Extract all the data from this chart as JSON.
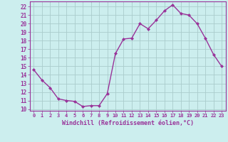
{
  "x": [
    0,
    1,
    2,
    3,
    4,
    5,
    6,
    7,
    8,
    9,
    10,
    11,
    12,
    13,
    14,
    15,
    16,
    17,
    18,
    19,
    20,
    21,
    22,
    23
  ],
  "y": [
    14.6,
    13.4,
    12.5,
    11.2,
    11.0,
    10.9,
    10.3,
    10.4,
    10.4,
    11.8,
    16.5,
    18.2,
    18.3,
    20.0,
    19.4,
    20.4,
    21.5,
    22.2,
    21.2,
    21.0,
    20.0,
    18.3,
    16.4,
    15.0
  ],
  "xlabel": "Windchill (Refroidissement éolien,°C)",
  "xlim": [
    -0.5,
    23.5
  ],
  "ylim": [
    9.8,
    22.6
  ],
  "yticks": [
    10,
    11,
    12,
    13,
    14,
    15,
    16,
    17,
    18,
    19,
    20,
    21,
    22
  ],
  "xticks": [
    0,
    1,
    2,
    3,
    4,
    5,
    6,
    7,
    8,
    9,
    10,
    11,
    12,
    13,
    14,
    15,
    16,
    17,
    18,
    19,
    20,
    21,
    22,
    23
  ],
  "line_color": "#993399",
  "marker_color": "#993399",
  "bg_color": "#cceeee",
  "grid_color": "#aacccc",
  "tick_label_color": "#993399",
  "xlabel_color": "#993399"
}
